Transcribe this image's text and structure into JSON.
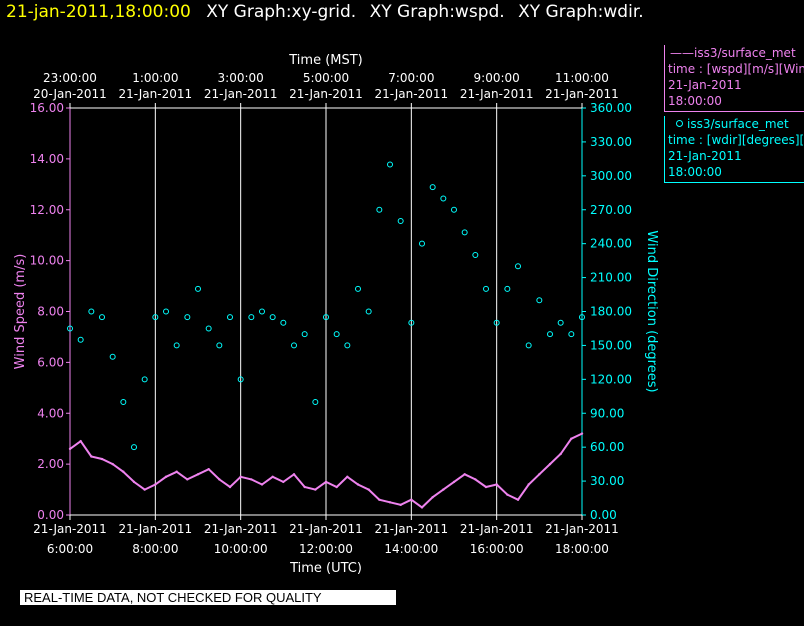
{
  "header": {
    "timestamp": "21-jan-2011,18:00:00",
    "graphs": [
      "XY Graph:xy-grid.",
      "XY Graph:wspd.",
      "XY Graph:wdir."
    ]
  },
  "legend": {
    "wspd": {
      "title": "iss3/surface_met",
      "desc": "time : [wspd][m/s][Wind Speed]",
      "date": "21-Jan-2011",
      "time": "18:00:00",
      "color": "#ee82ee"
    },
    "wdir": {
      "title": "iss3/surface_met",
      "desc": "time : [wdir][degrees][Wind Direction]",
      "date": "21-Jan-2011",
      "time": "18:00:00",
      "color": "#00ffff"
    }
  },
  "disclaimer": "REAL-TIME DATA, NOT CHECKED FOR QUALITY",
  "chart_data": {
    "type": "scatter",
    "top_axis_title": "Time (MST)",
    "top_ticks": [
      {
        "t": "23:00:00",
        "d": "20-Jan-2011"
      },
      {
        "t": "1:00:00",
        "d": "21-Jan-2011"
      },
      {
        "t": "3:00:00",
        "d": "21-Jan-2011"
      },
      {
        "t": "5:00:00",
        "d": "21-Jan-2011"
      },
      {
        "t": "7:00:00",
        "d": "21-Jan-2011"
      },
      {
        "t": "9:00:00",
        "d": "21-Jan-2011"
      },
      {
        "t": "11:00:00",
        "d": "21-Jan-2011"
      }
    ],
    "xlabel": "Time (UTC)",
    "bottom_ticks": [
      {
        "d": "21-Jan-2011",
        "t": "6:00:00"
      },
      {
        "d": "21-Jan-2011",
        "t": "8:00:00"
      },
      {
        "d": "21-Jan-2011",
        "t": "10:00:00"
      },
      {
        "d": "21-Jan-2011",
        "t": "12:00:00"
      },
      {
        "d": "21-Jan-2011",
        "t": "14:00:00"
      },
      {
        "d": "21-Jan-2011",
        "t": "16:00:00"
      },
      {
        "d": "21-Jan-2011",
        "t": "18:00:00"
      }
    ],
    "xlim_utc_hours": [
      6,
      18
    ],
    "grid": true,
    "left_axis": {
      "label": "Wind Speed (m/s)",
      "ylim": [
        0,
        16
      ],
      "ticks": [
        "0.00",
        "2.00",
        "4.00",
        "6.00",
        "8.00",
        "10.00",
        "12.00",
        "14.00",
        "16.00"
      ],
      "color": "#ee82ee"
    },
    "right_axis": {
      "label": "Wind Direction (degrees)",
      "ylim": [
        0,
        360
      ],
      "ticks": [
        "0.00",
        "30.00",
        "60.00",
        "90.00",
        "120.00",
        "150.00",
        "180.00",
        "210.00",
        "240.00",
        "270.00",
        "300.00",
        "330.00",
        "360.00"
      ],
      "color": "#00ffff"
    },
    "series": [
      {
        "name": "wspd",
        "axis": "left",
        "style": "line",
        "color": "#ee82ee",
        "x": [
          6.0,
          6.25,
          6.5,
          6.75,
          7.0,
          7.25,
          7.5,
          7.75,
          8.0,
          8.25,
          8.5,
          8.75,
          9.0,
          9.25,
          9.5,
          9.75,
          10.0,
          10.25,
          10.5,
          10.75,
          11.0,
          11.25,
          11.5,
          11.75,
          12.0,
          12.25,
          12.5,
          12.75,
          13.0,
          13.25,
          13.5,
          13.75,
          14.0,
          14.25,
          14.5,
          14.75,
          15.0,
          15.25,
          15.5,
          15.75,
          16.0,
          16.25,
          16.5,
          16.75,
          17.0,
          17.25,
          17.5,
          17.75,
          18.0
        ],
        "y": [
          2.6,
          2.9,
          2.3,
          2.2,
          2.0,
          1.7,
          1.3,
          1.0,
          1.2,
          1.5,
          1.7,
          1.4,
          1.6,
          1.8,
          1.4,
          1.1,
          1.5,
          1.4,
          1.2,
          1.5,
          1.3,
          1.6,
          1.1,
          1.0,
          1.3,
          1.1,
          1.5,
          1.2,
          1.0,
          0.6,
          0.5,
          0.4,
          0.6,
          0.3,
          0.7,
          1.0,
          1.3,
          1.6,
          1.4,
          1.1,
          1.2,
          0.8,
          0.6,
          1.2,
          1.6,
          2.0,
          2.4,
          3.0,
          3.2
        ]
      },
      {
        "name": "wdir",
        "axis": "right",
        "style": "points",
        "color": "#00ffff",
        "x": [
          6.0,
          6.25,
          6.5,
          6.75,
          7.0,
          7.25,
          7.5,
          7.75,
          8.0,
          8.25,
          8.5,
          8.75,
          9.0,
          9.25,
          9.5,
          9.75,
          10.0,
          10.25,
          10.5,
          10.75,
          11.0,
          11.25,
          11.5,
          11.75,
          12.0,
          12.25,
          12.5,
          12.75,
          13.0,
          13.25,
          13.5,
          13.75,
          14.0,
          14.25,
          14.5,
          14.75,
          15.0,
          15.25,
          15.5,
          15.75,
          16.0,
          16.25,
          16.5,
          16.75,
          17.0,
          17.25,
          17.5,
          17.75,
          18.0
        ],
        "y": [
          165,
          155,
          180,
          175,
          140,
          100,
          60,
          120,
          175,
          180,
          150,
          175,
          200,
          165,
          150,
          175,
          120,
          175,
          180,
          175,
          170,
          150,
          160,
          100,
          175,
          160,
          150,
          200,
          180,
          270,
          310,
          260,
          170,
          240,
          290,
          280,
          270,
          250,
          230,
          200,
          170,
          200,
          220,
          150,
          190,
          160,
          170,
          160,
          175
        ]
      }
    ]
  }
}
